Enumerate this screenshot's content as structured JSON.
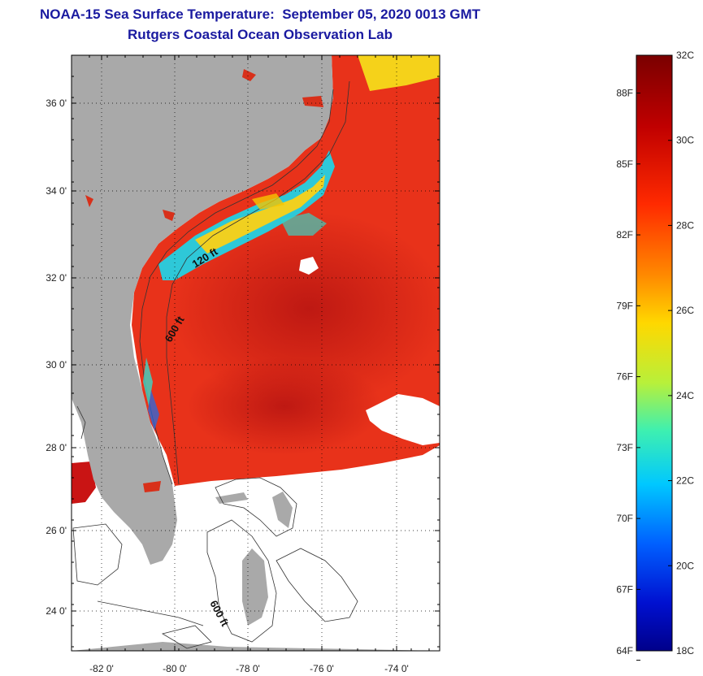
{
  "header": {
    "title": "NOAA-15 Sea Surface Temperature:  September 05, 2020 0013 GMT",
    "subtitle": "Rutgers Coastal Ocean Observation Lab"
  },
  "map": {
    "lat_ticks": [
      "36 0'",
      "34 0'",
      "32 0'",
      "30 0'",
      "28 0'",
      "26 0'",
      "24 0'"
    ],
    "lon_ticks": [
      "-82 0'",
      "-80 0'",
      "-78 0'",
      "-76 0'",
      "-74 0'"
    ],
    "contour_labels": [
      "120 ft",
      "600 ft",
      "600 ft"
    ],
    "colors": {
      "land": "#a9a9a9",
      "no_data": "#ffffff",
      "warm_ocean": "#e8321a",
      "hot_ocean": "#c91414",
      "cool_nearshore": "#2ec8d8"
    }
  },
  "colorbar": {
    "min_c": 18,
    "max_c": 32,
    "celsius_labels": [
      "32C",
      "30C",
      "28C",
      "26C",
      "24C",
      "22C",
      "20C",
      "18C"
    ],
    "fahrenheit_labels": [
      "88F",
      "85F",
      "82F",
      "79F",
      "76F",
      "73F",
      "70F",
      "67F",
      "64F"
    ]
  }
}
